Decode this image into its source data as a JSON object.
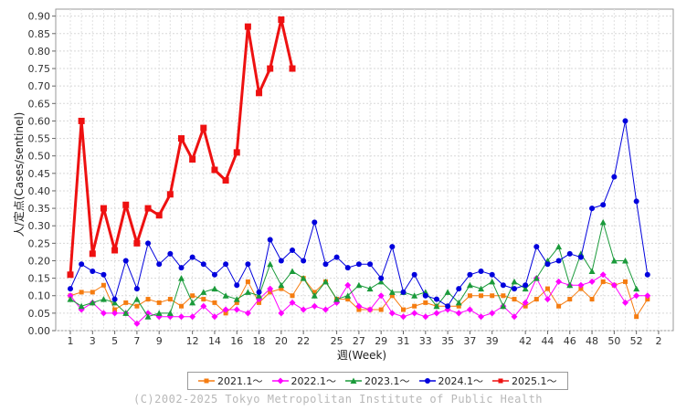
{
  "chart_data": {
    "type": "line",
    "xlabel": "週(Week)",
    "ylabel": "人/定点(Cases/sentinel)",
    "ylim": [
      0,
      0.92
    ],
    "yticks": [
      0.0,
      0.05,
      0.1,
      0.15,
      0.2,
      0.25,
      0.3,
      0.35,
      0.4,
      0.45,
      0.5,
      0.55,
      0.6,
      0.65,
      0.7,
      0.75,
      0.8,
      0.85,
      0.9
    ],
    "xticks": [
      "1",
      "3",
      "5",
      "7",
      "9",
      "12",
      "14",
      "16",
      "18",
      "20",
      "22",
      "25",
      "27",
      "29",
      "31",
      "33",
      "35",
      "37",
      "39",
      "42",
      "44",
      "46",
      "48",
      "50",
      "52",
      "2"
    ],
    "grid": true,
    "legend_position": "bottom",
    "series": [
      {
        "name": "2021.1～",
        "color": "#f57c10",
        "marker": "square",
        "values": [
          0.1,
          0.11,
          0.11,
          0.13,
          0.06,
          0.08,
          0.07,
          0.09,
          0.08,
          0.09,
          0.07,
          0.1,
          0.09,
          0.08,
          0.05,
          0.08,
          0.14,
          0.08,
          0.11,
          0.12,
          0.1,
          0.15,
          0.11,
          0.14,
          0.09,
          0.09,
          0.06,
          0.06,
          0.06,
          0.1,
          0.06,
          0.07,
          0.08,
          0.07,
          0.07,
          0.07,
          0.1,
          0.1,
          0.1,
          0.1,
          0.09,
          0.07,
          0.09,
          0.12,
          0.07,
          0.09,
          0.12,
          0.09,
          0.14,
          0.13,
          0.14,
          0.04,
          0.09
        ]
      },
      {
        "name": "2022.1～",
        "color": "#ff00ff",
        "marker": "diamond",
        "values": [
          0.1,
          0.06,
          0.08,
          0.05,
          0.05,
          0.05,
          0.02,
          0.05,
          0.04,
          0.04,
          0.04,
          0.04,
          0.07,
          0.04,
          0.06,
          0.06,
          0.05,
          0.09,
          0.12,
          0.05,
          0.08,
          0.06,
          0.07,
          0.06,
          0.08,
          0.13,
          0.07,
          0.06,
          0.1,
          0.05,
          0.04,
          0.05,
          0.04,
          0.05,
          0.06,
          0.05,
          0.06,
          0.04,
          0.05,
          0.07,
          0.04,
          0.08,
          0.15,
          0.09,
          0.14,
          0.13,
          0.13,
          0.14,
          0.16,
          0.13,
          0.08,
          0.1,
          0.1
        ]
      },
      {
        "name": "2023.1～",
        "color": "#1a9a3a",
        "marker": "triangle",
        "values": [
          0.09,
          0.07,
          0.08,
          0.09,
          0.08,
          0.05,
          0.09,
          0.04,
          0.05,
          0.05,
          0.15,
          0.08,
          0.11,
          0.12,
          0.1,
          0.09,
          0.11,
          0.1,
          0.19,
          0.13,
          0.17,
          0.15,
          0.1,
          0.14,
          0.09,
          0.1,
          0.13,
          0.12,
          0.14,
          0.11,
          0.11,
          0.1,
          0.11,
          0.07,
          0.11,
          0.08,
          0.13,
          0.12,
          0.14,
          0.07,
          0.14,
          0.12,
          0.15,
          0.2,
          0.24,
          0.13,
          0.22,
          0.17,
          0.31,
          0.2,
          0.2,
          0.12
        ]
      },
      {
        "name": "2024.1～",
        "color": "#0000dd",
        "marker": "circle",
        "values": [
          0.12,
          0.19,
          0.17,
          0.16,
          0.09,
          0.2,
          0.12,
          0.25,
          0.19,
          0.22,
          0.18,
          0.21,
          0.19,
          0.16,
          0.19,
          0.13,
          0.19,
          0.11,
          0.26,
          0.2,
          0.23,
          0.2,
          0.31,
          0.19,
          0.21,
          0.18,
          0.19,
          0.19,
          0.15,
          0.24,
          0.11,
          0.16,
          0.1,
          0.09,
          0.07,
          0.12,
          0.16,
          0.17,
          0.16,
          0.13,
          0.12,
          0.13,
          0.24,
          0.19,
          0.2,
          0.22,
          0.21,
          0.35,
          0.36,
          0.44,
          0.6,
          0.37,
          0.16
        ]
      },
      {
        "name": "2025.1～",
        "color": "#ee1111",
        "marker": "square",
        "values": [
          0.16,
          0.6,
          0.22,
          0.35,
          0.23,
          0.36,
          0.25,
          0.35,
          0.33,
          0.39,
          0.55,
          0.49,
          0.58,
          0.46,
          0.43,
          0.51,
          0.87,
          0.68,
          0.75,
          0.89,
          0.75
        ]
      }
    ]
  },
  "footer": {
    "credit": "(C)2002-2025 Tokyo Metropolitan Institute of Public Health"
  }
}
